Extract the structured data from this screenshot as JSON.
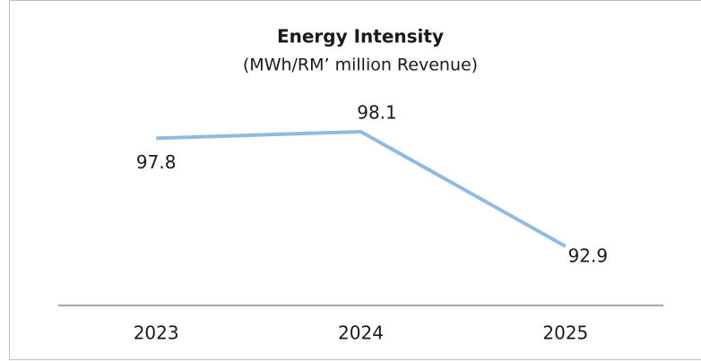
{
  "chart_data": {
    "type": "line",
    "title": "Energy Intensity",
    "subtitle": "(MWh/RM’ million Revenue)",
    "categories": [
      "2023",
      "2024",
      "2025"
    ],
    "series": [
      {
        "name": "Energy Intensity",
        "color": "#8fbbe0",
        "values": [
          97.8,
          98.1,
          92.9
        ]
      }
    ]
  }
}
